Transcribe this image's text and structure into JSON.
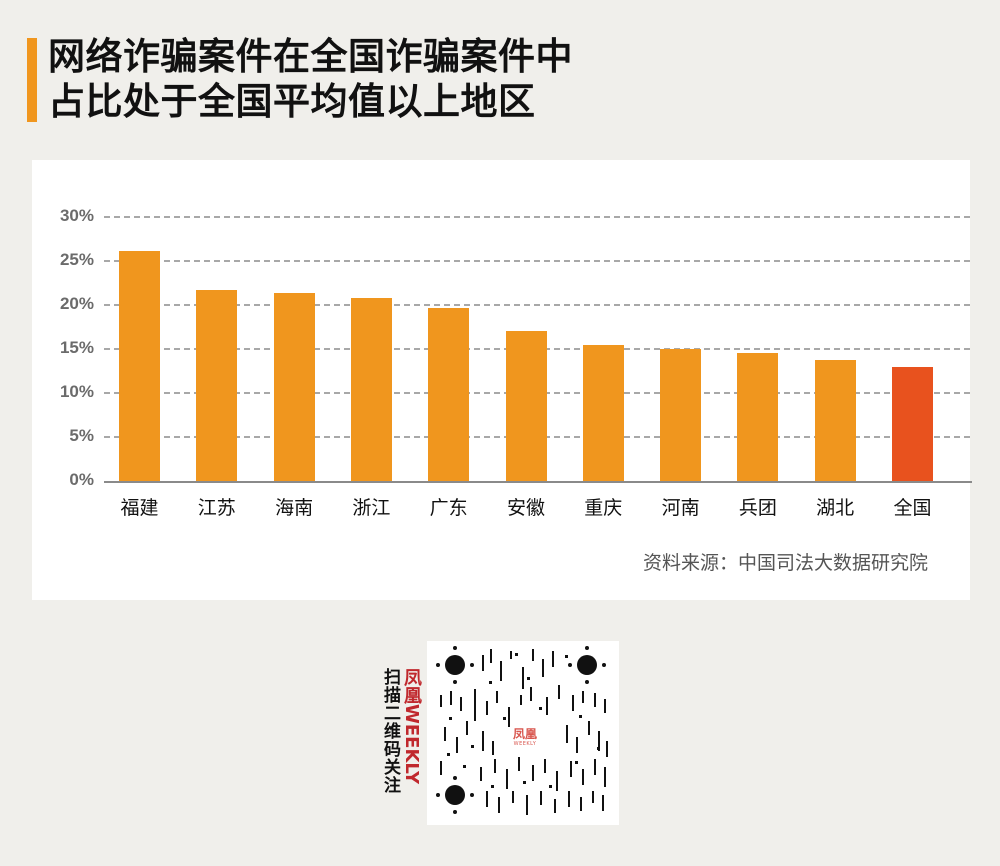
{
  "title": {
    "line1": "网络诈骗案件在全国诈骗案件中",
    "line2": "占比处于全国平均值以上地区"
  },
  "chart_data": {
    "type": "bar",
    "title": "网络诈骗案件在全国诈骗案件中占比处于全国平均值以上地区",
    "categories": [
      "福建",
      "江苏",
      "海南",
      "浙江",
      "广东",
      "安徽",
      "重庆",
      "河南",
      "兵团",
      "湖北",
      "全国"
    ],
    "values": [
      26.1,
      21.7,
      21.4,
      20.8,
      19.7,
      17.1,
      15.4,
      15.0,
      14.5,
      13.7,
      12.9
    ],
    "unit": "%",
    "xlabel": "",
    "ylabel": "",
    "ylim": [
      0,
      30
    ],
    "yticks": [
      "0%",
      "5%",
      "10%",
      "15%",
      "20%",
      "25%",
      "30%"
    ],
    "grid": true,
    "grid_style": "dashed",
    "legend": "none",
    "colors": {
      "default": "#f0961e",
      "highlight": "#e8521e"
    },
    "highlight_category": "全国"
  },
  "source": "资料来源：中国司法大数据研究院",
  "qr": {
    "brand": "凤凰WEEKLY",
    "brand_red": "凤凰WEEKLY",
    "prompt": "扫描二维码关注",
    "center_logo": "凤凰",
    "center_sub": "WEEKLY"
  }
}
